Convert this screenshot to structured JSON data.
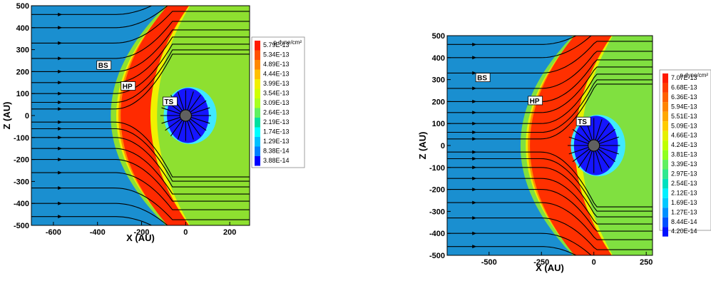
{
  "chart_data": [
    {
      "type": "heatmap",
      "xlabel": "X (AU)",
      "ylabel": "Z (AU)",
      "xlim": [
        -700,
        290
      ],
      "ylim": [
        -500,
        500
      ],
      "xticks": [
        -600,
        -400,
        -200,
        0,
        200
      ],
      "yticks": [
        500,
        400,
        300,
        200,
        100,
        0,
        -100,
        -200,
        -300,
        -400,
        -500
      ],
      "colorbar_title": "p dyne/cm²",
      "colorbar_levels": [
        "5.79E-13",
        "5.34E-13",
        "4.89E-13",
        "4.44E-13",
        "3.99E-13",
        "3.54E-13",
        "3.09E-13",
        "2.64E-13",
        "2.19E-13",
        "1.74E-13",
        "1.29E-13",
        "8.38E-14",
        "3.88E-14"
      ],
      "colorbar_colors": [
        "#ff1a00",
        "#ff5000",
        "#ff8800",
        "#ffc000",
        "#f2f000",
        "#d0ff00",
        "#a8ff20",
        "#60f060",
        "#00e0a0",
        "#00ffff",
        "#00c0ff",
        "#0080ff",
        "#0000ff"
      ],
      "annotations": [
        "BS",
        "HP",
        "TS"
      ],
      "field_colors": {
        "background": "#1a8fd0",
        "green": "#8ee030",
        "yellow": "#f0f000",
        "red": "#ff2a00",
        "orange": "#ff8c00",
        "cyan": "#40e8ff",
        "ts_blue": "#1515ff"
      },
      "model": {
        "ts_radius": 85,
        "hp_nose": -200,
        "bs_nose": -340
      }
    },
    {
      "type": "heatmap",
      "xlabel": "X (AU)",
      "ylabel": "Z (AU)",
      "xlim": [
        -700,
        280
      ],
      "ylim": [
        -500,
        500
      ],
      "xticks": [
        -500,
        -250,
        0,
        250
      ],
      "yticks": [
        500,
        400,
        300,
        200,
        100,
        0,
        -100,
        -200,
        -300,
        -400,
        -500
      ],
      "colorbar_title": "p dyne/cm²",
      "colorbar_levels": [
        "7.07E-13",
        "6.68E-13",
        "6.36E-13",
        "5.94E-13",
        "5.51E-13",
        "5.09E-13",
        "4.66E-13",
        "4.24E-13",
        "3.81E-13",
        "3.39E-13",
        "2.97E-13",
        "2.54E-13",
        "2.12E-13",
        "1.69E-13",
        "1.27E-13",
        "8.44E-14",
        "4.20E-14"
      ],
      "colorbar_colors": [
        "#ff1a00",
        "#ff3c00",
        "#ff6000",
        "#ff8400",
        "#ffa800",
        "#ffcc00",
        "#e6f000",
        "#c0ff00",
        "#90ff20",
        "#60f060",
        "#30e890",
        "#00e0c0",
        "#00f0ff",
        "#00c8ff",
        "#0090ff",
        "#0050ff",
        "#0010ff"
      ],
      "annotations": [
        "BS",
        "HP",
        "TS"
      ],
      "field_colors": {
        "background": "#1a8fd0",
        "green": "#80e040",
        "yellow": "#e8f000",
        "red": "#ff3000",
        "orange": "#ff9000",
        "cyan": "#40e8ff",
        "ts_blue": "#1515ff"
      },
      "model": {
        "ts_radius": 95,
        "hp_nose": -130,
        "bs_nose": -350
      }
    }
  ]
}
